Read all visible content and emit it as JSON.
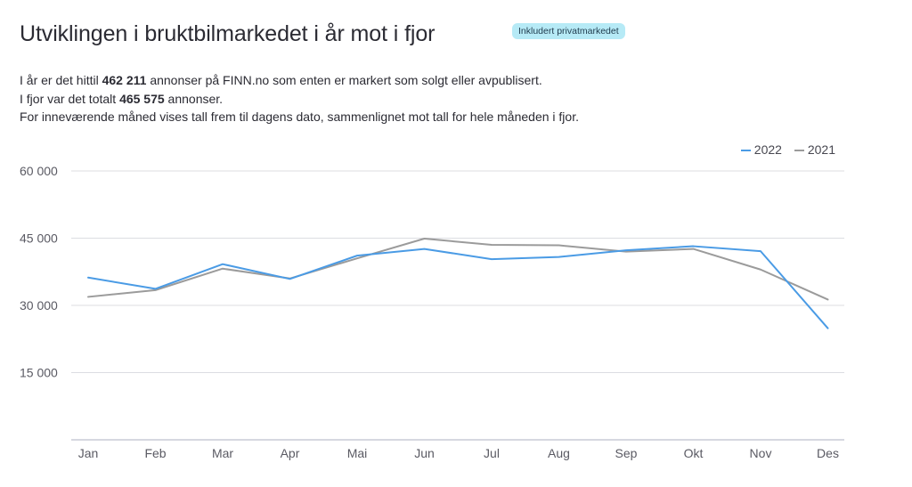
{
  "header": {
    "title": "Utviklingen i bruktbilmarkedet i år mot i fjor",
    "badge": "Inkludert privatmarkedet"
  },
  "description": {
    "line1_prefix": "I år er det hittil ",
    "line1_value": "462 211",
    "line1_suffix": " annonser på FINN.no som enten er markert som solgt eller avpublisert.",
    "line2_prefix": "I fjor var det totalt ",
    "line2_value": "465 575",
    "line2_suffix": " annonser.",
    "line3": "For inneværende måned vises tall frem til dagens dato, sammenlignet mot tall for hele måneden i fjor."
  },
  "colors": {
    "series_2022": "#4a9be5",
    "series_2021": "#9b9b9b",
    "grid": "#dcdde2",
    "axis": "#c9ccd6"
  },
  "chart_data": {
    "type": "line",
    "categories": [
      "Jan",
      "Feb",
      "Mar",
      "Apr",
      "Mai",
      "Jun",
      "Jul",
      "Aug",
      "Sep",
      "Okt",
      "Nov",
      "Des"
    ],
    "y_ticks": [
      15000,
      30000,
      45000,
      60000
    ],
    "y_tick_labels": [
      "15 000",
      "30 000",
      "45 000",
      "60 000"
    ],
    "ylim": [
      0,
      60000
    ],
    "grid": true,
    "legend_position": "top-right",
    "series": [
      {
        "name": "2022",
        "values": [
          36200,
          33700,
          39200,
          35900,
          41100,
          42600,
          40300,
          40800,
          42300,
          43200,
          42100,
          24900
        ]
      },
      {
        "name": "2021",
        "values": [
          31900,
          33400,
          38200,
          36000,
          40500,
          44900,
          43500,
          43400,
          42000,
          42600,
          38000,
          31300
        ]
      }
    ]
  }
}
